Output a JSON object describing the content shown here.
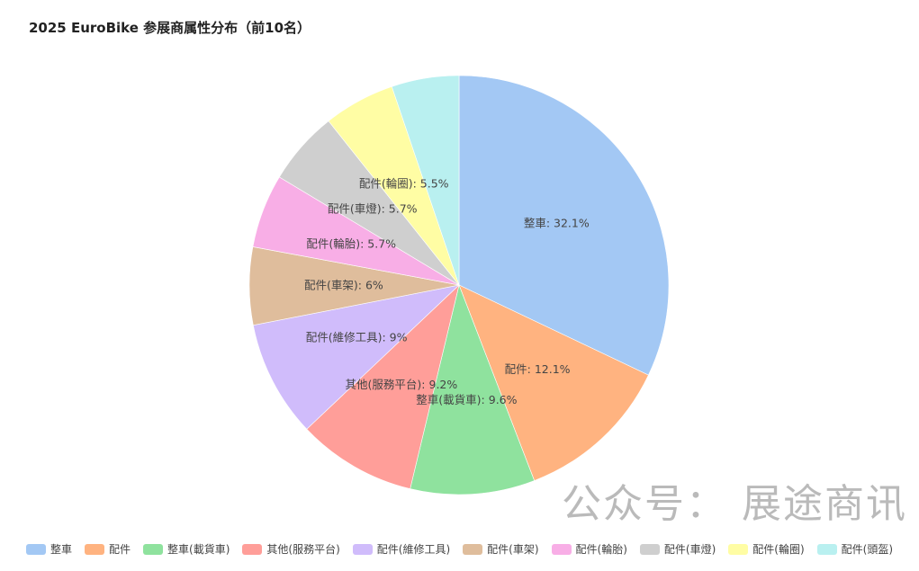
{
  "chart_data": {
    "type": "pie",
    "title": "2025 EuroBike 参展商属性分布（前10名）",
    "slices": [
      {
        "label": "整車",
        "value": 32.1,
        "color": "#a3c8f4"
      },
      {
        "label": "配件",
        "value": 12.1,
        "color": "#ffb380"
      },
      {
        "label": "整車(載貨車)",
        "value": 9.6,
        "color": "#8fe29e"
      },
      {
        "label": "其他(服務平台)",
        "value": 9.2,
        "color": "#ff9e99"
      },
      {
        "label": "配件(維修工具)",
        "value": 9,
        "color": "#d0bcfb"
      },
      {
        "label": "配件(車架)",
        "value": 6,
        "color": "#dfbd9c"
      },
      {
        "label": "配件(輪胎)",
        "value": 5.7,
        "color": "#f8aee6"
      },
      {
        "label": "配件(車燈)",
        "value": 5.7,
        "color": "#cfcfcf"
      },
      {
        "label": "配件(輪圈)",
        "value": 5.5,
        "color": "#fffda4"
      },
      {
        "label": "配件(頭盔)",
        "value": 5.2,
        "color": "#b9f0f0"
      }
    ],
    "data_labels": [
      "整車: 32.1%",
      "配件: 12.1%",
      "整車(載貨車): 9.6%",
      "其他(服務平台): 9.2%",
      "配件(維修工具): 9%",
      "配件(車架): 6%",
      "配件(輪胎): 5.7%",
      "配件(車燈): 5.7%",
      "配件(輪圈): 5.5%",
      ""
    ],
    "legend_position": "bottom"
  },
  "watermark": "公众号： 展途商讯"
}
